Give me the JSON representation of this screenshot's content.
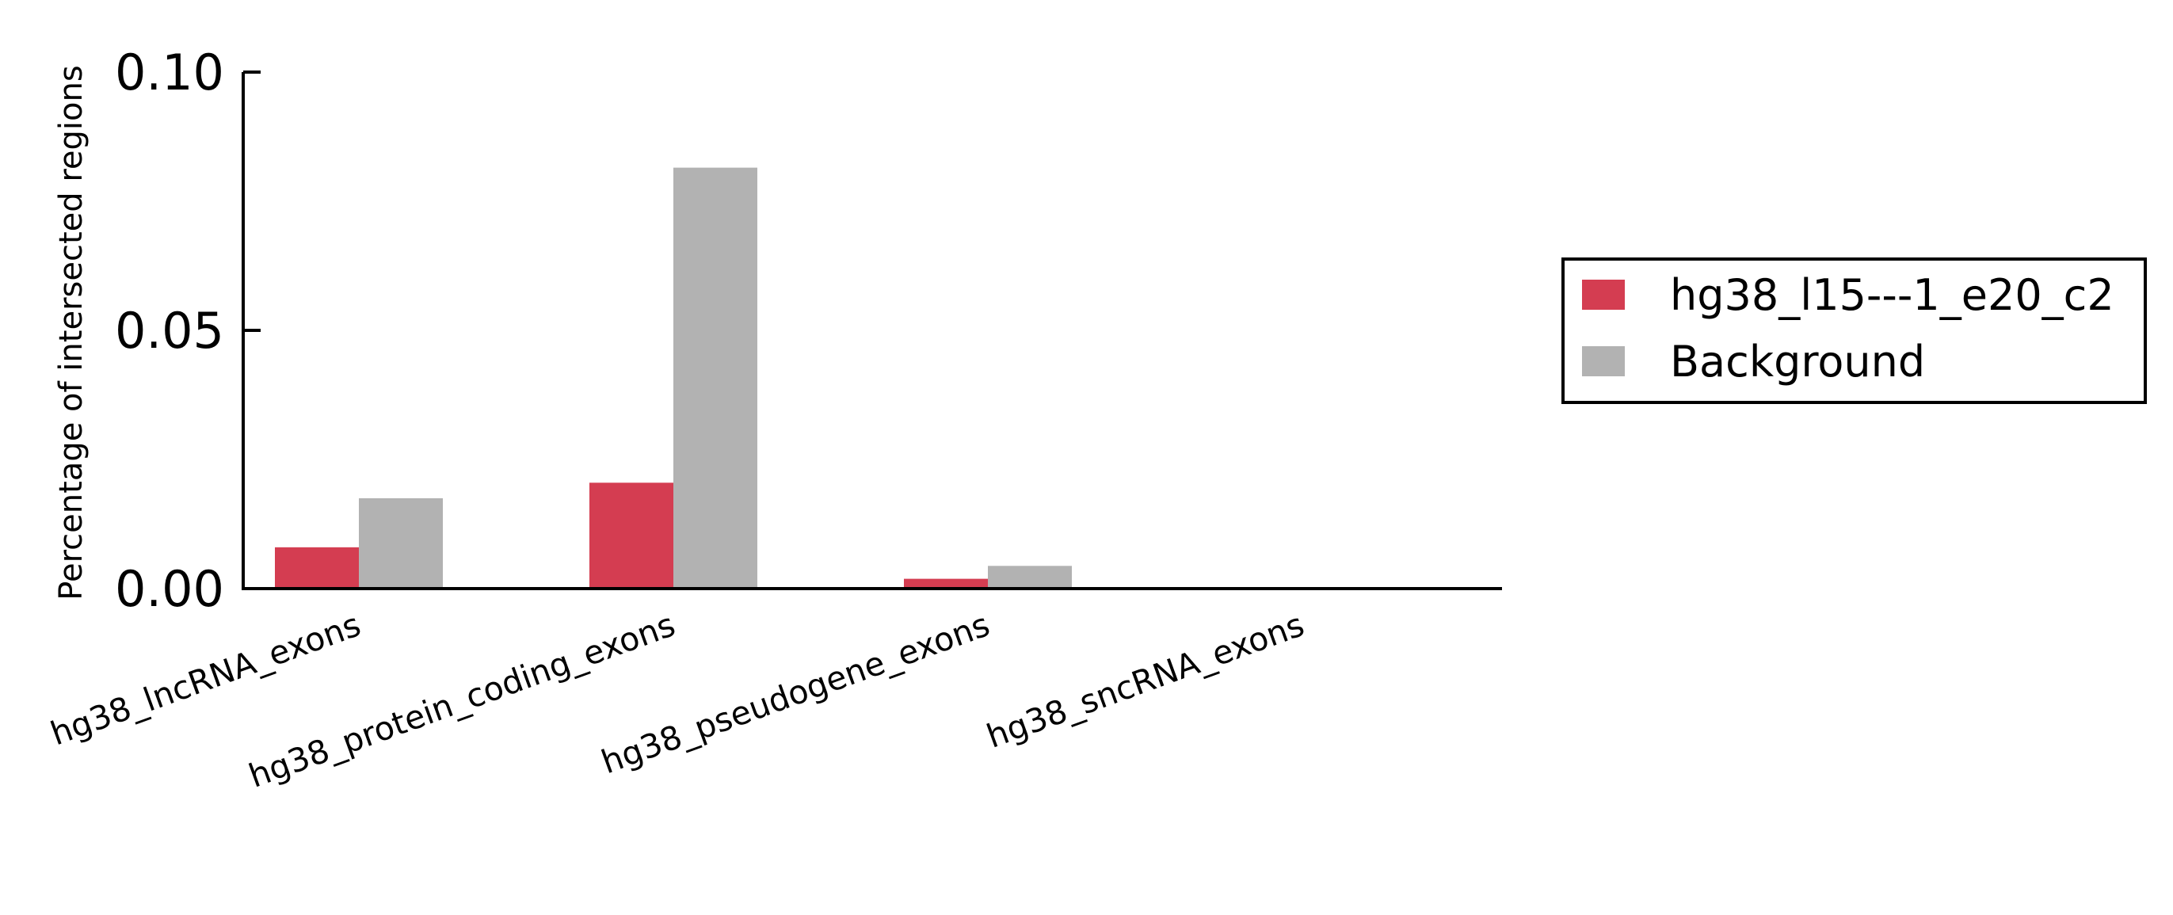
{
  "chart_data": {
    "type": "bar",
    "title": "",
    "xlabel": "",
    "ylabel": "Percentage of intersected regions",
    "ylim": [
      0,
      0.1
    ],
    "yticks": [
      "0.00",
      "0.05",
      "0.10"
    ],
    "ytick_values": [
      0,
      0.05,
      0.1
    ],
    "categories": [
      "hg38_lncRNA_exons",
      "hg38_protein_coding_exons",
      "hg38_pseudogene_exons",
      "hg38_sncRNA_exons"
    ],
    "series": [
      {
        "name": "hg38_l15---1_e20_c2",
        "color": "#d43d51",
        "values": [
          0.008,
          0.0205,
          0.0019,
          0.0
        ]
      },
      {
        "name": "Background",
        "color": "#b2b2b2",
        "values": [
          0.0175,
          0.0815,
          0.0044,
          0.0
        ]
      }
    ],
    "grid": false,
    "legend_position": "right"
  }
}
